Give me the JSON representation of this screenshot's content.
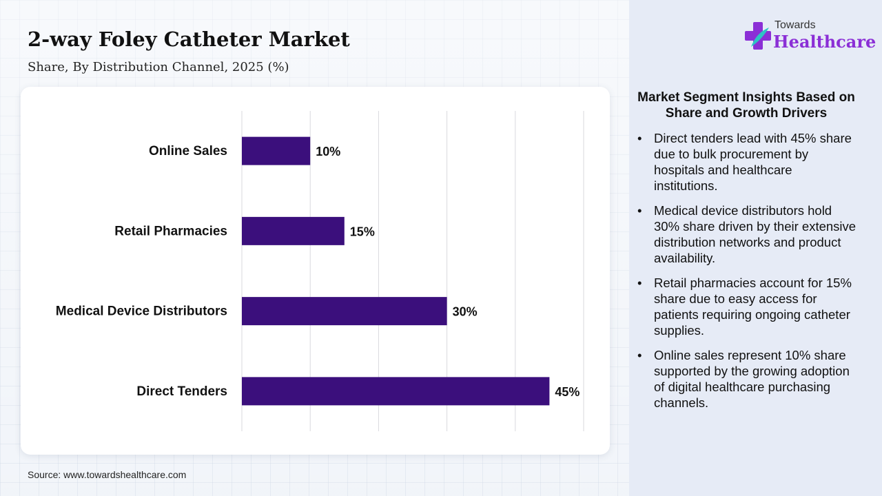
{
  "title": "2-way Foley Catheter Market",
  "subtitle": "Share, By Distribution Channel, 2025 (%)",
  "source": "Source: www.towardshealthcare.com",
  "logo": {
    "top": "Towards",
    "main": "Healthcare"
  },
  "insights": {
    "heading": "Market Segment Insights Based on Share and Growth Drivers",
    "items": [
      "Direct tenders lead with 45% share due to bulk procurement by hospitals and healthcare institutions.",
      "Medical device distributors hold 30% share driven by their extensive distribution networks and product availability.",
      "Retail pharmacies account for 15% share due to easy access for patients requiring ongoing catheter supplies.",
      "Online sales represent 10% share supported by the growing adoption of digital healthcare purchasing channels."
    ],
    "bullet": "•"
  },
  "colors": {
    "bar": "#3b0f7c",
    "logo_accent": "#8b2fd6",
    "logo_cross": "#2ec4c4"
  },
  "chart_data": {
    "type": "bar",
    "orientation": "horizontal",
    "categories": [
      "Online Sales",
      "Retail Pharmacies",
      "Medical Device Distributors",
      "Direct Tenders"
    ],
    "values": [
      10,
      15,
      30,
      45
    ],
    "value_labels": [
      "10%",
      "15%",
      "30%",
      "45%"
    ],
    "xlim": [
      0,
      50
    ],
    "grid": true,
    "legend": "none"
  }
}
